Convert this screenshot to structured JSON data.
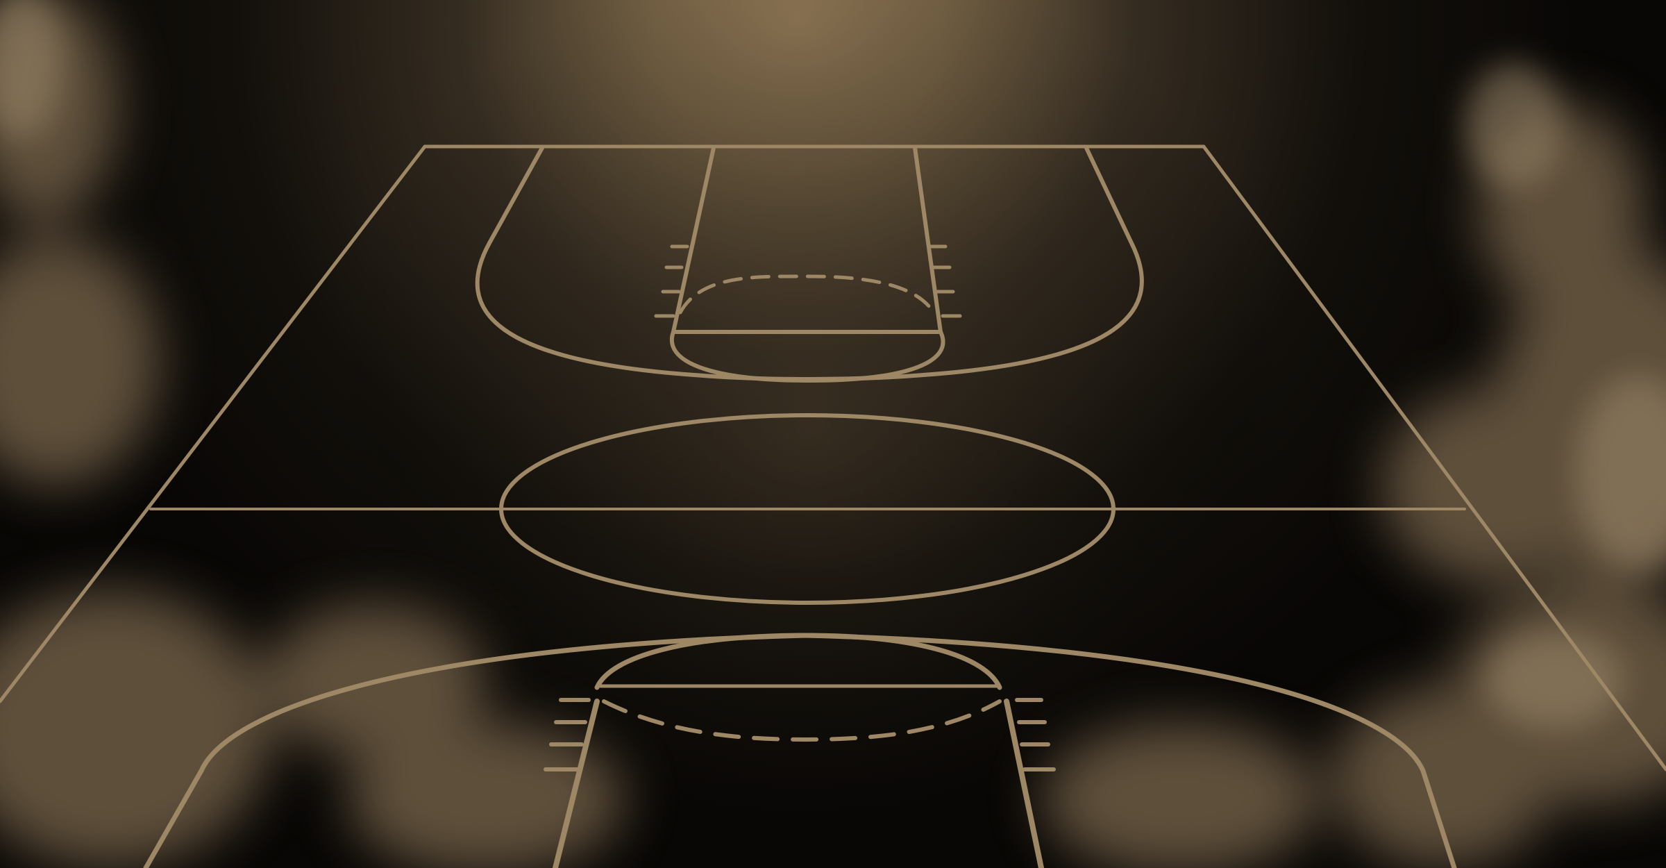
{
  "scene": {
    "subject": "basketball-court-perspective",
    "colors": {
      "line": "#b39a74",
      "glow": "#a88a63",
      "background_dark": "#0d0b08",
      "smoke": "#8c7658"
    }
  }
}
